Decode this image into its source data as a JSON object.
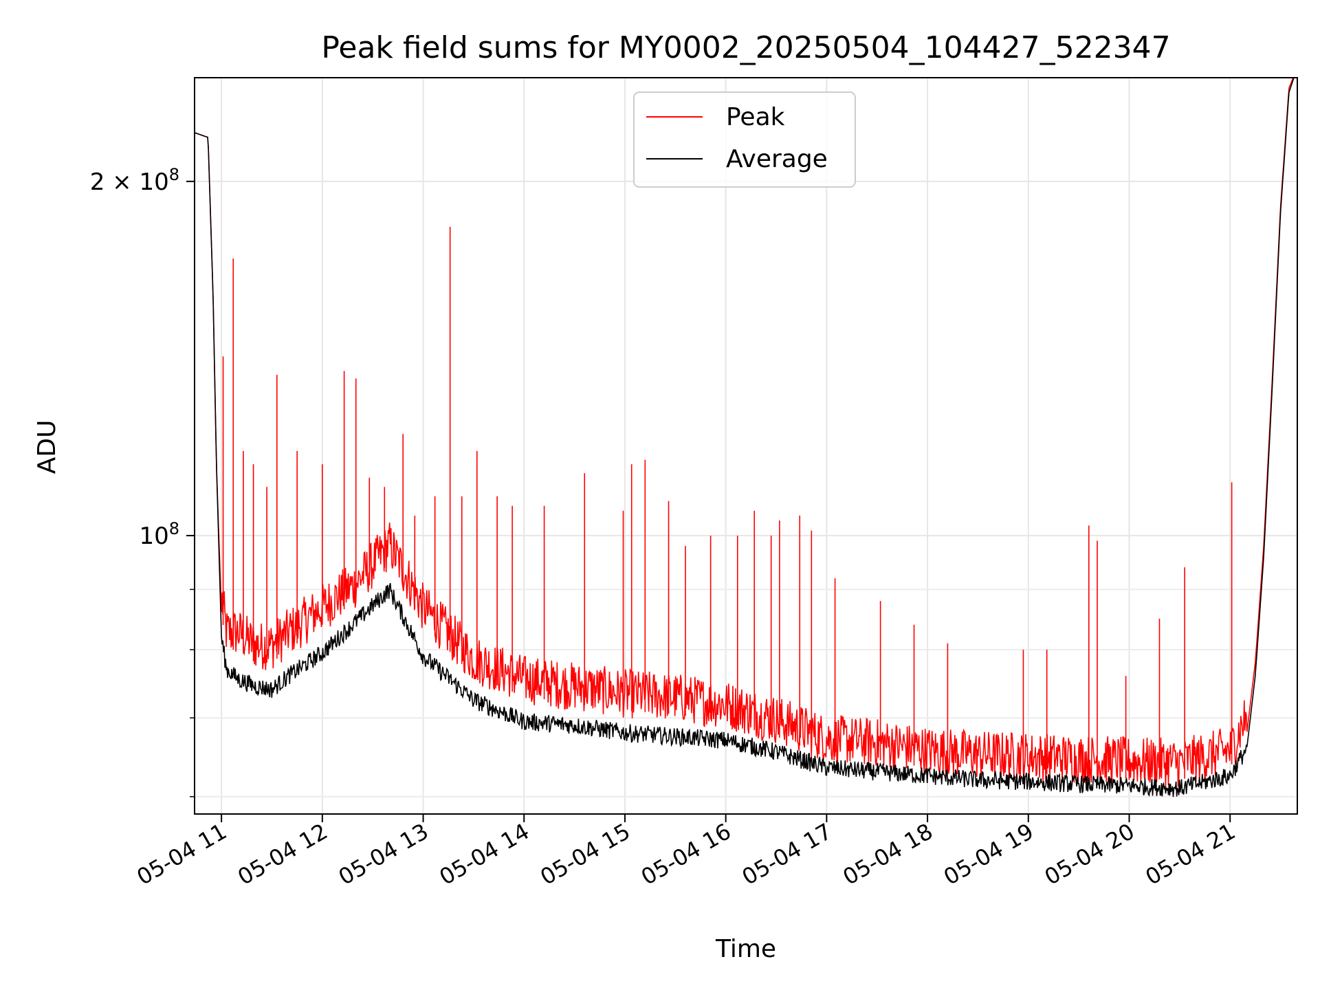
{
  "chart_data": {
    "type": "line",
    "title": "Peak field sums for MY0002_20250504_104427_522347",
    "xlabel": "Time",
    "ylabel": "ADU",
    "yscale": "log",
    "ylim": [
      58000000,
      245000000
    ],
    "xlim": [
      "05-04 10:44",
      "05-04 21:40"
    ],
    "grid": true,
    "legend_position": "top-center",
    "x_ticks": [
      "05-04 11",
      "05-04 12",
      "05-04 13",
      "05-04 14",
      "05-04 15",
      "05-04 16",
      "05-04 17",
      "05-04 18",
      "05-04 19",
      "05-04 20",
      "05-04 21"
    ],
    "y_ticks": [
      {
        "value": 100000000,
        "base": "10",
        "exp": "8",
        "coef": ""
      },
      {
        "value": 200000000,
        "base": "10",
        "exp": "8",
        "coef": "2 × "
      }
    ],
    "series": [
      {
        "name": "Peak",
        "color": "#ff0000",
        "x": [
          "05-04 10:44",
          "05-04 10:52",
          "05-04 10:55",
          "05-04 10:57",
          "05-04 11:00",
          "05-04 11:03",
          "05-04 11:10",
          "05-04 11:20",
          "05-04 11:30",
          "05-04 11:40",
          "05-04 12:00",
          "05-04 12:20",
          "05-04 12:40",
          "05-04 13:00",
          "05-04 13:30",
          "05-04 14:00",
          "05-04 14:30",
          "05-04 15:00",
          "05-04 15:30",
          "05-04 16:00",
          "05-04 16:30",
          "05-04 17:00",
          "05-04 17:30",
          "05-04 18:00",
          "05-04 18:30",
          "05-04 19:00",
          "05-04 19:30",
          "05-04 20:00",
          "05-04 20:30",
          "05-04 21:00",
          "05-04 21:10",
          "05-04 21:15",
          "05-04 21:20",
          "05-04 21:25",
          "05-04 21:30",
          "05-04 21:35",
          "05-04 21:40"
        ],
        "y": [
          220000000,
          218000000,
          160000000,
          115000000,
          86000000,
          80000000,
          80000000,
          78000000,
          78000000,
          80000000,
          84000000,
          88000000,
          95000000,
          84000000,
          76000000,
          73000000,
          72000000,
          71000000,
          70500000,
          69500000,
          67500000,
          65000000,
          64500000,
          63500000,
          63000000,
          62800000,
          62500000,
          62200000,
          62000000,
          63500000,
          68000000,
          78000000,
          98000000,
          135000000,
          190000000,
          240000000,
          250000000
        ],
        "spikes": [
          {
            "x": "05-04 11:01",
            "y": 142000000
          },
          {
            "x": "05-04 11:07",
            "y": 172000000
          },
          {
            "x": "05-04 11:13",
            "y": 118000000
          },
          {
            "x": "05-04 11:19",
            "y": 115000000
          },
          {
            "x": "05-04 11:27",
            "y": 110000000
          },
          {
            "x": "05-04 11:33",
            "y": 137000000
          },
          {
            "x": "05-04 11:45",
            "y": 118000000
          },
          {
            "x": "05-04 12:00",
            "y": 115000000
          },
          {
            "x": "05-04 12:13",
            "y": 138000000
          },
          {
            "x": "05-04 12:20",
            "y": 136000000
          },
          {
            "x": "05-04 12:28",
            "y": 112000000
          },
          {
            "x": "05-04 12:37",
            "y": 110000000
          },
          {
            "x": "05-04 12:48",
            "y": 122000000
          },
          {
            "x": "05-04 12:55",
            "y": 104000000
          },
          {
            "x": "05-04 13:07",
            "y": 108000000
          },
          {
            "x": "05-04 13:16",
            "y": 183000000
          },
          {
            "x": "05-04 13:23",
            "y": 108000000
          },
          {
            "x": "05-04 13:32",
            "y": 118000000
          },
          {
            "x": "05-04 13:44",
            "y": 108000000
          },
          {
            "x": "05-04 13:53",
            "y": 106000000
          },
          {
            "x": "05-04 14:12",
            "y": 106000000
          },
          {
            "x": "05-04 14:36",
            "y": 113000000
          },
          {
            "x": "05-04 14:59",
            "y": 105000000
          },
          {
            "x": "05-04 15:04",
            "y": 115000000
          },
          {
            "x": "05-04 15:12",
            "y": 116000000
          },
          {
            "x": "05-04 15:26",
            "y": 107000000
          },
          {
            "x": "05-04 15:36",
            "y": 98000000
          },
          {
            "x": "05-04 15:51",
            "y": 100000000
          },
          {
            "x": "05-04 16:07",
            "y": 100000000
          },
          {
            "x": "05-04 16:17",
            "y": 105000000
          },
          {
            "x": "05-04 16:27",
            "y": 100000000
          },
          {
            "x": "05-04 16:32",
            "y": 103000000
          },
          {
            "x": "05-04 16:44",
            "y": 104000000
          },
          {
            "x": "05-04 16:51",
            "y": 101000000
          },
          {
            "x": "05-04 17:05",
            "y": 92000000
          },
          {
            "x": "05-04 17:32",
            "y": 88000000
          },
          {
            "x": "05-04 17:52",
            "y": 84000000
          },
          {
            "x": "05-04 18:12",
            "y": 81000000
          },
          {
            "x": "05-04 18:57",
            "y": 80000000
          },
          {
            "x": "05-04 19:11",
            "y": 80000000
          },
          {
            "x": "05-04 19:36",
            "y": 102000000
          },
          {
            "x": "05-04 19:41",
            "y": 99000000
          },
          {
            "x": "05-04 19:58",
            "y": 76000000
          },
          {
            "x": "05-04 20:18",
            "y": 85000000
          },
          {
            "x": "05-04 20:33",
            "y": 94000000
          },
          {
            "x": "05-04 21:01",
            "y": 111000000
          }
        ]
      },
      {
        "name": "Average",
        "color": "#000000",
        "x": [
          "05-04 10:44",
          "05-04 10:52",
          "05-04 10:55",
          "05-04 10:57",
          "05-04 11:00",
          "05-04 11:03",
          "05-04 11:10",
          "05-04 11:20",
          "05-04 11:30",
          "05-04 11:40",
          "05-04 12:00",
          "05-04 12:20",
          "05-04 12:40",
          "05-04 13:00",
          "05-04 13:30",
          "05-04 14:00",
          "05-04 14:30",
          "05-04 15:00",
          "05-04 15:30",
          "05-04 16:00",
          "05-04 16:30",
          "05-04 17:00",
          "05-04 17:30",
          "05-04 18:00",
          "05-04 18:30",
          "05-04 19:00",
          "05-04 19:30",
          "05-04 20:00",
          "05-04 20:30",
          "05-04 21:00",
          "05-04 21:10",
          "05-04 21:15",
          "05-04 21:20",
          "05-04 21:25",
          "05-04 21:30",
          "05-04 21:35",
          "05-04 21:40"
        ],
        "y": [
          220000000,
          218000000,
          160000000,
          115000000,
          82000000,
          77000000,
          75500000,
          74500000,
          74000000,
          76000000,
          79500000,
          84500000,
          90000000,
          79000000,
          72500000,
          69500000,
          69000000,
          68000000,
          67500000,
          67000000,
          65500000,
          63500000,
          63000000,
          62500000,
          62000000,
          61800000,
          61500000,
          61300000,
          61000000,
          62500000,
          66000000,
          76000000,
          96000000,
          133000000,
          188000000,
          238000000,
          250000000
        ]
      }
    ]
  }
}
